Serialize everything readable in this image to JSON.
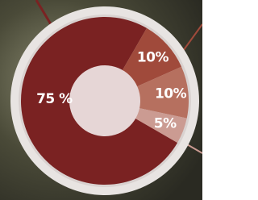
{
  "chart_data": {
    "type": "donut",
    "categories": [
      null,
      null,
      null,
      null
    ],
    "values": [
      75,
      10,
      10,
      5
    ],
    "value_labels": [
      "75 %",
      "10%",
      "10%",
      "5%"
    ],
    "colors": [
      "#7a2222",
      "#a04a3b",
      "#b6705f",
      "#cb9b92"
    ]
  }
}
